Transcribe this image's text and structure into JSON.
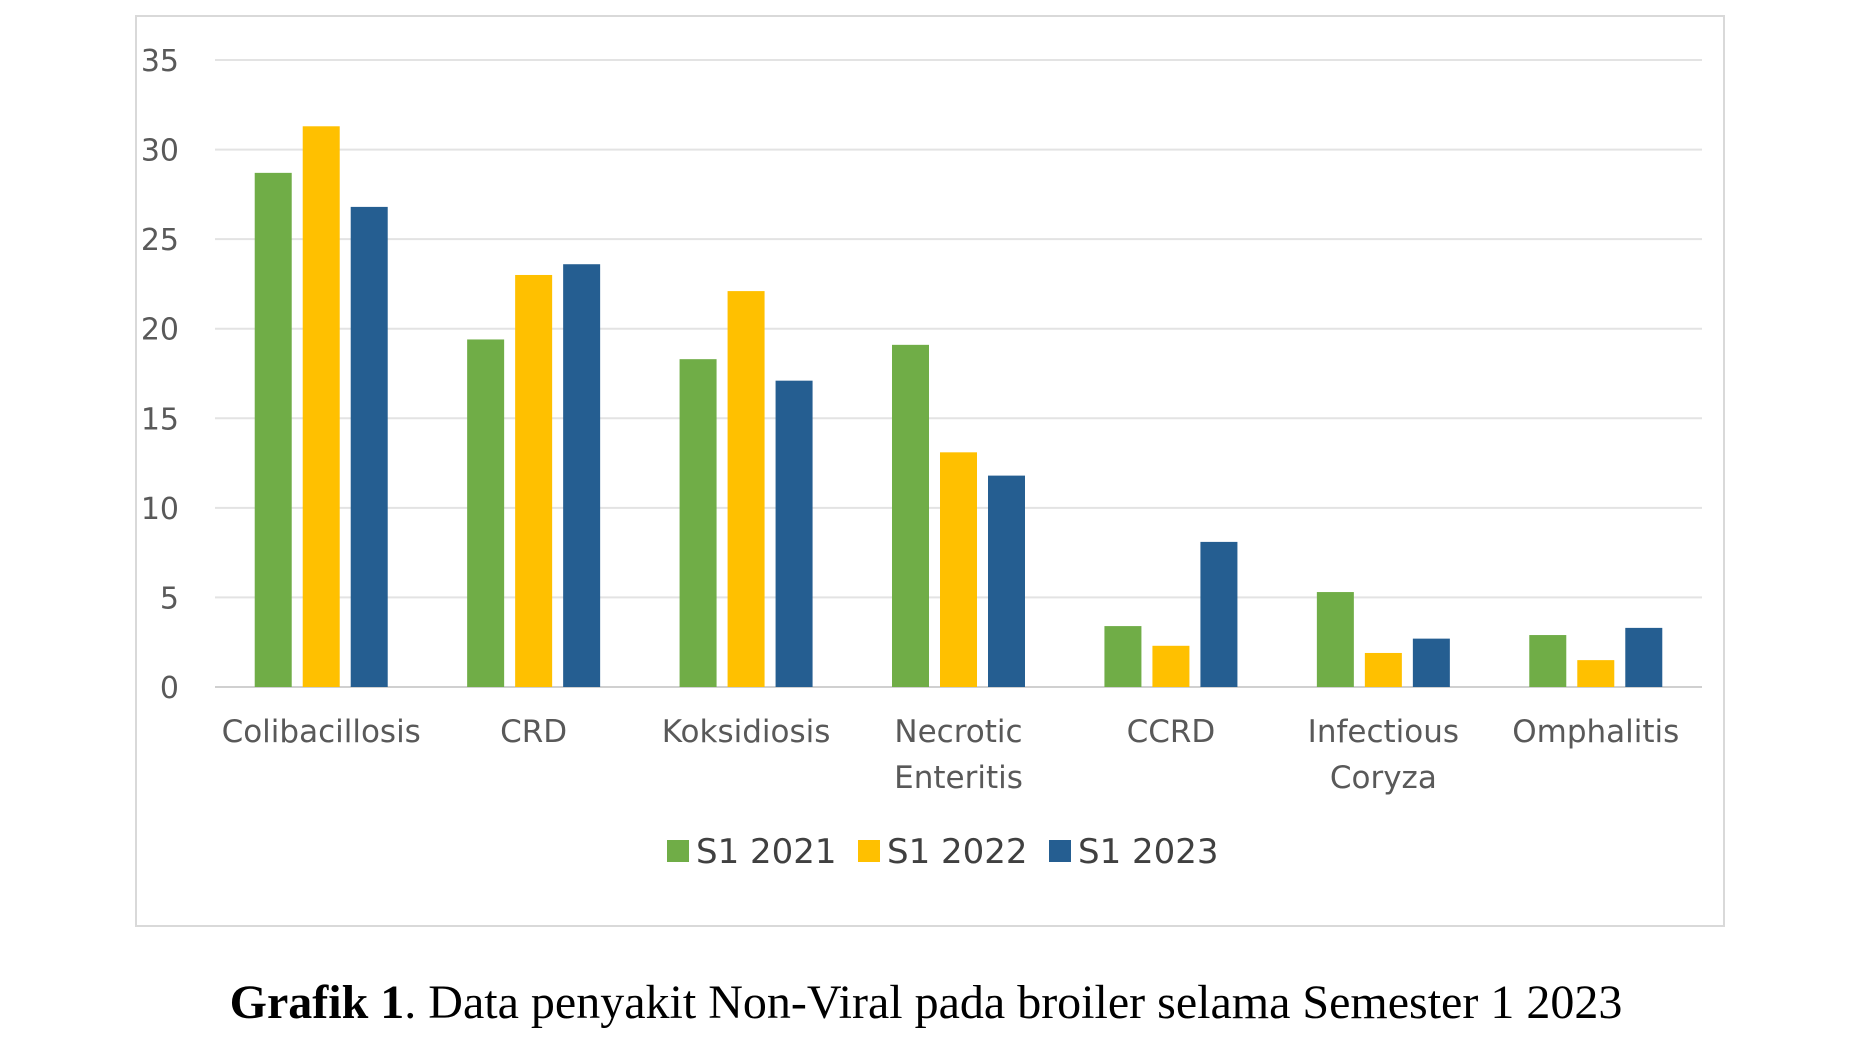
{
  "chart_data": {
    "type": "bar",
    "title": "",
    "xlabel": "",
    "ylabel": "",
    "ylim": [
      0,
      35
    ],
    "yticks": [
      0,
      5,
      10,
      15,
      20,
      25,
      30,
      35
    ],
    "grid": true,
    "legend_position": "bottom",
    "categories": [
      [
        "Colibacillosis"
      ],
      [
        "CRD"
      ],
      [
        "Koksidiosis"
      ],
      [
        "Necrotic",
        "Enteritis"
      ],
      [
        "CCRD"
      ],
      [
        "Infectious",
        "Coryza"
      ],
      [
        "Omphalitis"
      ]
    ],
    "series": [
      {
        "name": "S1 2021",
        "color": "#70ad47",
        "values": [
          28.7,
          19.4,
          18.3,
          19.1,
          3.4,
          5.3,
          2.9
        ]
      },
      {
        "name": "S1 2022",
        "color": "#ffc000",
        "values": [
          31.3,
          23.0,
          22.1,
          13.1,
          2.3,
          1.9,
          1.5
        ]
      },
      {
        "name": "S1 2023",
        "color": "#255e91",
        "values": [
          26.8,
          23.6,
          17.1,
          11.8,
          8.1,
          2.7,
          3.3
        ]
      }
    ]
  },
  "caption": {
    "label": "Grafik 1",
    "text": ". Data penyakit Non-Viral pada broiler selama Semester 1 2023"
  }
}
